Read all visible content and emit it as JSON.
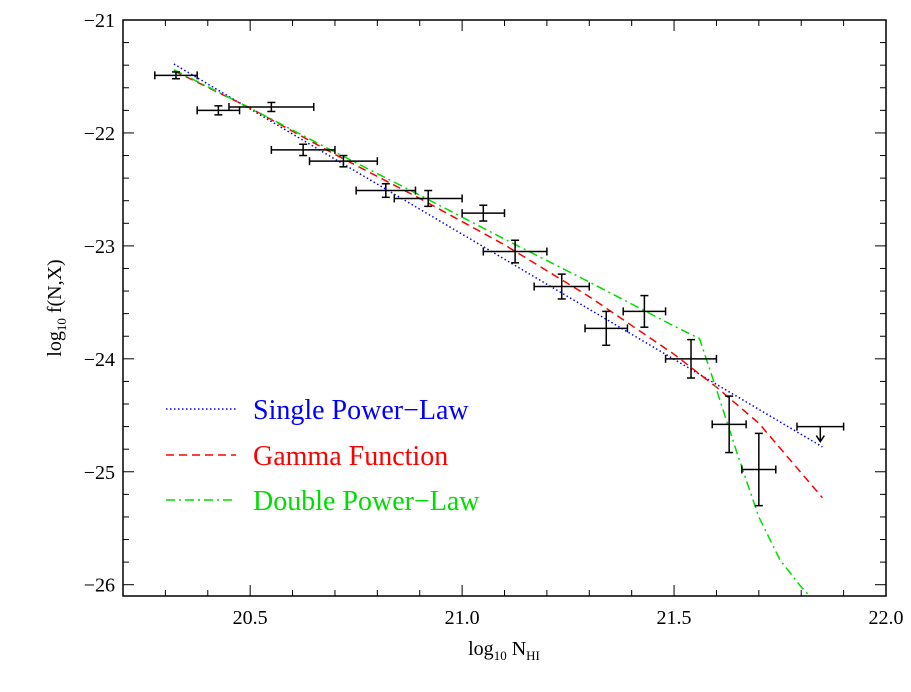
{
  "chart_data": {
    "type": "scatter",
    "xlabel": {
      "main": "log",
      "sub": "10",
      "rest": " N",
      "rest_sub": "HI"
    },
    "ylabel": {
      "main": "log",
      "sub": "10",
      "rest": " f(N,X)"
    },
    "xlim": [
      20.2,
      22.0
    ],
    "ylim": [
      -26.1,
      -21.0
    ],
    "x_ticks": [
      20.5,
      21.0,
      21.5,
      22.0
    ],
    "x_tick_labels": [
      "20.5",
      "21.0",
      "21.5",
      "22.0"
    ],
    "y_ticks": [
      -26,
      -25,
      -24,
      -23,
      -22,
      -21
    ],
    "y_tick_labels": [
      "−26",
      "−25",
      "−24",
      "−23",
      "−22",
      "−21"
    ],
    "x_minor_step": 0.1,
    "y_minor_step": 0.2,
    "grid": false,
    "legend_position": "bottom-left",
    "data_points": [
      {
        "x": 20.325,
        "y": -21.49,
        "xerr": 0.05,
        "yerr": 0.03
      },
      {
        "x": 20.425,
        "y": -21.8,
        "xerr": 0.05,
        "yerr": 0.04
      },
      {
        "x": 20.55,
        "y": -21.77,
        "xerr": 0.1,
        "yerr": 0.04
      },
      {
        "x": 20.625,
        "y": -22.15,
        "xerr": 0.075,
        "yerr": 0.05
      },
      {
        "x": 20.72,
        "y": -22.25,
        "xerr": 0.08,
        "yerr": 0.05
      },
      {
        "x": 20.82,
        "y": -22.51,
        "xerr": 0.07,
        "yerr": 0.06
      },
      {
        "x": 20.92,
        "y": -22.58,
        "xerr": 0.08,
        "yerr": 0.07
      },
      {
        "x": 21.05,
        "y": -22.71,
        "xerr": 0.05,
        "yerr": 0.07
      },
      {
        "x": 21.125,
        "y": -23.05,
        "xerr": 0.075,
        "yerr": 0.1
      },
      {
        "x": 21.235,
        "y": -23.36,
        "xerr": 0.065,
        "yerr": 0.11
      },
      {
        "x": 21.34,
        "y": -23.73,
        "xerr": 0.05,
        "yerr": 0.15
      },
      {
        "x": 21.43,
        "y": -23.58,
        "xerr": 0.05,
        "yerr": 0.14
      },
      {
        "x": 21.54,
        "y": -24.0,
        "xerr": 0.06,
        "yerr": 0.17
      },
      {
        "x": 21.63,
        "y": -24.58,
        "xerr": 0.04,
        "yerr": 0.25
      },
      {
        "x": 21.7,
        "y": -24.98,
        "xerr": 0.04,
        "yerr": 0.32
      },
      {
        "x": 21.845,
        "y": -24.6,
        "xerr": 0.055,
        "yerr": 0,
        "upper_limit": true
      }
    ],
    "series": [
      {
        "name": "Single Power−Law",
        "color": "#0000ff",
        "style": "dotted",
        "x": [
          20.32,
          21.85
        ],
        "y": [
          -21.39,
          -24.78
        ]
      },
      {
        "name": "Gamma Function",
        "color": "#ff0000",
        "style": "dashed",
        "x": [
          20.32,
          20.5,
          20.7,
          20.9,
          21.1,
          21.3,
          21.5,
          21.6,
          21.7,
          21.85
        ],
        "y": [
          -21.45,
          -21.78,
          -22.19,
          -22.58,
          -22.99,
          -23.45,
          -23.96,
          -24.25,
          -24.57,
          -25.23
        ]
      },
      {
        "name": "Double Power−Law",
        "color": "#00dd00",
        "style": "dashdot",
        "x": [
          20.32,
          20.5,
          20.7,
          20.9,
          21.1,
          21.3,
          21.5,
          21.56,
          21.6,
          21.65,
          21.7,
          21.75,
          21.8,
          21.82
        ],
        "y": [
          -21.44,
          -21.78,
          -22.17,
          -22.55,
          -22.94,
          -23.32,
          -23.71,
          -23.82,
          -24.27,
          -24.85,
          -25.4,
          -25.78,
          -26.02,
          -26.1
        ]
      }
    ]
  }
}
